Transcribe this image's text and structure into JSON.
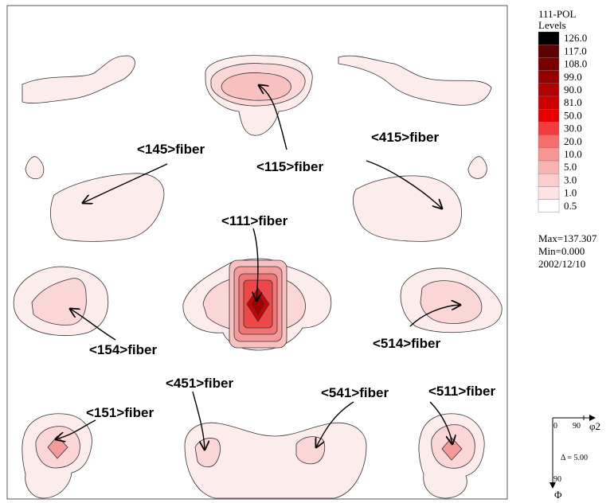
{
  "legend": {
    "title_line1": "111-POL",
    "title_line2": "Levels",
    "levels": [
      {
        "label": "126.0",
        "color": "#000000"
      },
      {
        "label": "117.0",
        "color": "#5c0000"
      },
      {
        "label": "108.0",
        "color": "#7a0000"
      },
      {
        "label": "99.0",
        "color": "#970000"
      },
      {
        "label": "90.0",
        "color": "#b30000"
      },
      {
        "label": "81.0",
        "color": "#cc0000"
      },
      {
        "label": "50.0",
        "color": "#e60000"
      },
      {
        "label": "30.0",
        "color": "#f03c3c"
      },
      {
        "label": "20.0",
        "color": "#f46e6e"
      },
      {
        "label": "10.0",
        "color": "#f79494"
      },
      {
        "label": "5.0",
        "color": "#f9b2b2"
      },
      {
        "label": "3.0",
        "color": "#fbcccc"
      },
      {
        "label": "1.0",
        "color": "#fde3e3"
      },
      {
        "label": "0.5",
        "color": "#ffffff"
      }
    ],
    "max_text": "Max=137.307",
    "min_text": "Min=0.000",
    "date_text": "2002/12/10"
  },
  "axes": {
    "origin_label": "0",
    "phi2_tick": "90",
    "phi2_label": "φ2",
    "delta_text": "Δ  = 5.00",
    "Phi_tick": "90",
    "Phi_label": "Φ"
  },
  "fibers": {
    "f115": "<115>fiber",
    "f145": "<145>fiber",
    "f415": "<415>fiber",
    "f111": "<111>fiber",
    "f154": "<154>fiber",
    "f514": "<514>fiber",
    "f451": "<451>fiber",
    "f541": "<541>fiber",
    "f511": "<511>fiber",
    "f151": "<151>fiber"
  },
  "colors": {
    "contour_fill_light": "#fdecec",
    "contour_fill_mid": "#f9c6c6",
    "contour_fill_dark": "#d10000",
    "line": "#000000"
  }
}
